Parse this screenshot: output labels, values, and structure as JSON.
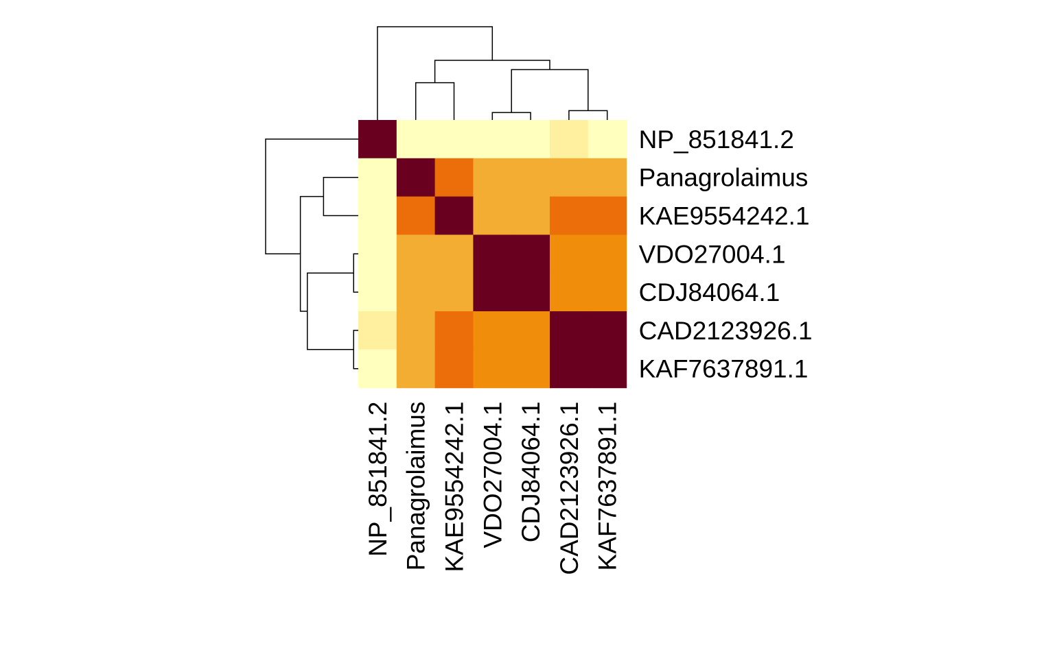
{
  "chart_data": {
    "type": "heatmap",
    "row_labels": [
      "NP_851841.2",
      "Panagrolaimus",
      "KAE9554242.1",
      "VDO27004.1",
      "CDJ84064.1",
      "CAD2123926.1",
      "KAF7637891.1"
    ],
    "col_labels": [
      "NP_851841.2",
      "Panagrolaimus",
      "KAE9554242.1",
      "VDO27004.1",
      "CDJ84064.1",
      "CAD2123926.1",
      "KAF7637891.1"
    ],
    "values": [
      [
        1.0,
        0.0,
        0.0,
        0.0,
        0.0,
        0.05,
        0.0
      ],
      [
        0.0,
        1.0,
        0.62,
        0.45,
        0.45,
        0.45,
        0.45
      ],
      [
        0.0,
        0.62,
        1.0,
        0.45,
        0.45,
        0.62,
        0.62
      ],
      [
        0.0,
        0.45,
        0.45,
        1.0,
        1.0,
        0.55,
        0.55
      ],
      [
        0.0,
        0.45,
        0.45,
        1.0,
        1.0,
        0.55,
        0.55
      ],
      [
        0.05,
        0.45,
        0.62,
        0.55,
        0.55,
        1.0,
        1.0
      ],
      [
        0.0,
        0.45,
        0.62,
        0.55,
        0.55,
        1.0,
        1.0
      ]
    ],
    "colormap": [
      "#ffffbe",
      "#fff0a0",
      "#f3ad32",
      "#f08d0a",
      "#eb6e0a",
      "#6a001f"
    ],
    "row_dendrogram": [
      {
        "a": 3,
        "b": 4,
        "h": 0.02
      },
      {
        "a": 5,
        "b": 6,
        "h": 0.02
      },
      {
        "a": 1,
        "b": 2,
        "h": 0.15
      },
      {
        "a": "3-4",
        "b": "5-6",
        "h": 0.22
      },
      {
        "a": "1-2",
        "b": "3-6",
        "h": 0.25
      },
      {
        "a": 0,
        "b": "1-6",
        "h": 0.4
      }
    ],
    "col_dendrogram": [
      {
        "a": 3,
        "b": 4,
        "h": 0.04
      },
      {
        "a": 5,
        "b": 6,
        "h": 0.05
      },
      {
        "a": 1,
        "b": 2,
        "h": 0.2
      },
      {
        "a": "3-4",
        "b": "5-6",
        "h": 0.27
      },
      {
        "a": "1-2",
        "b": "3-6",
        "h": 0.32
      },
      {
        "a": 0,
        "b": "1-6",
        "h": 0.5
      }
    ]
  }
}
